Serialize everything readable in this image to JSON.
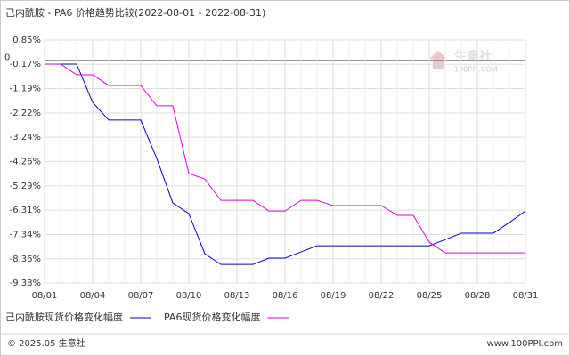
{
  "chart_data": {
    "type": "line",
    "title": "己内酰胺 - PA6 价格趋势比较(2022-08-01 - 2022-08-31)",
    "categories": [
      "08/01",
      null,
      null,
      "08/04",
      null,
      null,
      "08/07",
      null,
      null,
      "08/10",
      null,
      null,
      "08/13",
      null,
      null,
      "08/16",
      null,
      null,
      "08/19",
      null,
      null,
      "08/22",
      null,
      null,
      "08/25",
      null,
      null,
      "08/28",
      null,
      null,
      "08/31"
    ],
    "series": [
      {
        "name": "己内酰胺现货价格变化幅度",
        "color": "#0000cc",
        "values": [
          -0.16,
          -0.16,
          -0.16,
          -1.77,
          -2.52,
          -2.52,
          -2.52,
          -4.13,
          -6.01,
          -6.46,
          -8.15,
          -8.6,
          -8.6,
          -8.6,
          -8.33,
          -8.33,
          -8.07,
          -7.81,
          -7.81,
          -7.81,
          -7.81,
          -7.81,
          -7.81,
          -7.81,
          -7.81,
          -7.55,
          -7.28,
          -7.28,
          -7.28,
          -6.83,
          -6.35
        ]
      },
      {
        "name": "PA6现货价格变化幅度",
        "color": "#e000e0",
        "values": [
          -0.16,
          -0.16,
          -0.61,
          -0.61,
          -1.06,
          -1.06,
          -1.06,
          -1.92,
          -1.92,
          -4.77,
          -5.0,
          -5.9,
          -5.9,
          -5.9,
          -6.35,
          -6.35,
          -5.9,
          -5.9,
          -6.12,
          -6.12,
          -6.12,
          -6.12,
          -6.53,
          -6.53,
          -7.66,
          -8.11,
          -8.11,
          -8.11,
          -8.11,
          -8.11,
          -8.11
        ]
      }
    ],
    "ylim": [
      -9.38,
      0.85
    ],
    "yticks": [
      {
        "value": 0.85,
        "label": "0.85%"
      },
      {
        "value": -0.17,
        "label": "-0.17%"
      },
      {
        "value": -1.19,
        "label": "-1.19%"
      },
      {
        "value": -2.22,
        "label": "-2.22%"
      },
      {
        "value": -3.24,
        "label": "-3.24%"
      },
      {
        "value": -4.26,
        "label": "-4.26%"
      },
      {
        "value": -5.29,
        "label": "-5.29%"
      },
      {
        "value": -6.31,
        "label": "-6.31%"
      },
      {
        "value": -7.34,
        "label": "-7.34%"
      },
      {
        "value": -8.36,
        "label": "-8.36%"
      },
      {
        "value": -9.38,
        "label": "-9.38%"
      }
    ],
    "zero_label": 0,
    "grid": true,
    "watermark": {
      "name": "生意社",
      "url": "100PPI.COM"
    },
    "footer": {
      "left": "© 2025.05 生意社",
      "right": "www.100PPI.com"
    }
  }
}
